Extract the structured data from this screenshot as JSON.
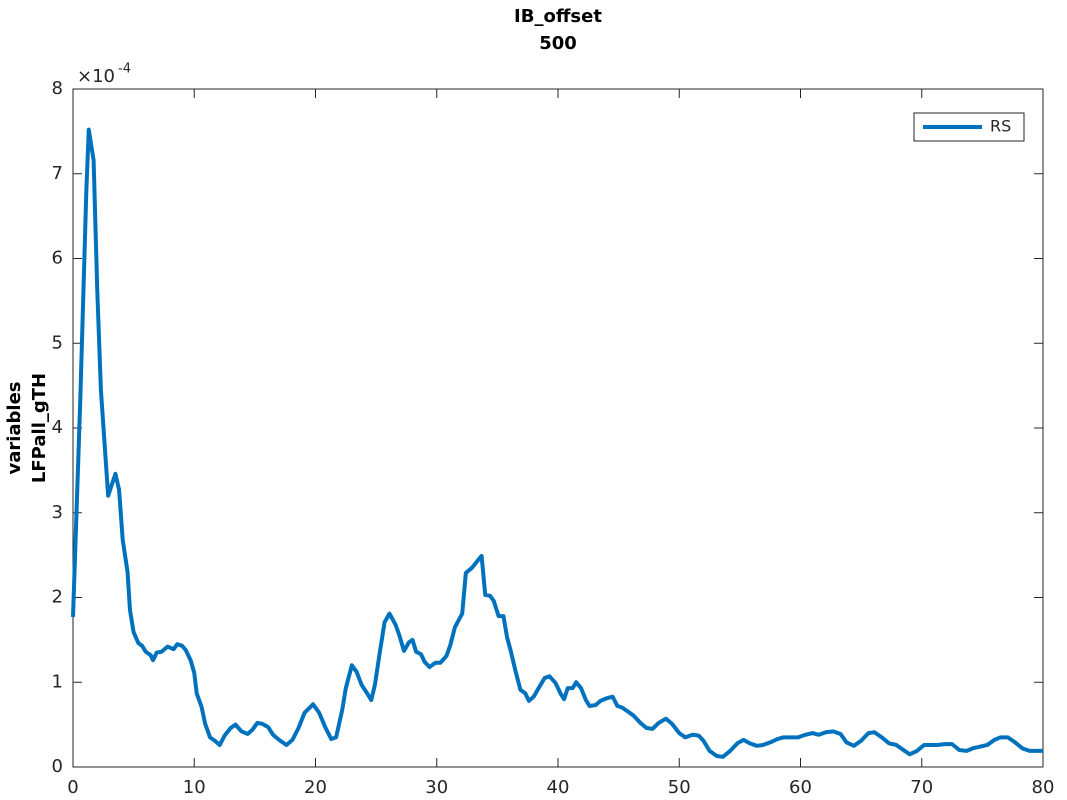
{
  "chart_data": {
    "type": "line",
    "title": [
      "IB_offset",
      "500"
    ],
    "ylabel": [
      "variables",
      "LFPall_gTH"
    ],
    "y_multiplier": "×10",
    "y_multiplier_exponent": "-4",
    "x": [
      0,
      0.6,
      1.1,
      1.3,
      1.7,
      2.0,
      2.3,
      2.9,
      3.5,
      3.8,
      4.1,
      4.5,
      4.7,
      5.0,
      5.4,
      5.7,
      6.0,
      6.4,
      6.6,
      6.9,
      7.3,
      7.8,
      8.3,
      8.6,
      9.0,
      9.3,
      9.7,
      10.0,
      10.2,
      10.6,
      10.9,
      11.3,
      11.7,
      12.1,
      12.5,
      13.0,
      13.4,
      13.9,
      14.4,
      14.8,
      15.2,
      15.6,
      16.1,
      16.5,
      17.0,
      17.6,
      18.1,
      18.6,
      19.1,
      19.8,
      20.3,
      20.8,
      21.3,
      21.7,
      22.2,
      22.5,
      23.0,
      23.4,
      23.8,
      24.3,
      24.6,
      24.9,
      25.3,
      25.7,
      26.1,
      26.6,
      26.9,
      27.3,
      27.7,
      28.0,
      28.3,
      28.7,
      29.0,
      29.4,
      29.9,
      30.3,
      30.8,
      31.1,
      31.5,
      32.1,
      32.4,
      32.9,
      33.4,
      33.7,
      34.0,
      34.4,
      34.7,
      35.1,
      35.5,
      35.8,
      36.1,
      36.5,
      36.9,
      37.3,
      37.6,
      38.0,
      38.4,
      38.9,
      39.3,
      39.8,
      40.2,
      40.5,
      40.8,
      41.2,
      41.5,
      41.9,
      42.3,
      42.6,
      43.1,
      43.5,
      44.0,
      44.5,
      44.9,
      45.3,
      45.8,
      46.2,
      46.8,
      47.3,
      47.8,
      48.3,
      48.9,
      49.4,
      50.0,
      50.5,
      51.1,
      51.6,
      52.0,
      52.5,
      53.1,
      53.6,
      54.2,
      54.8,
      55.3,
      55.8,
      56.4,
      56.9,
      57.5,
      58.1,
      58.6,
      59.2,
      59.8,
      60.4,
      61.0,
      61.5,
      62.1,
      62.7,
      63.3,
      63.8,
      64.4,
      65.0,
      65.6,
      66.1,
      66.7,
      67.3,
      67.9,
      68.5,
      69.0,
      69.6,
      70.2,
      70.8,
      71.3,
      71.9,
      72.5,
      73.1,
      73.7,
      74.2,
      74.8,
      75.4,
      76.0,
      76.5,
      77.1,
      77.7,
      78.3,
      78.9,
      79.4,
      80.0
    ],
    "series": [
      {
        "name": "RS",
        "color": "#0072bd",
        "values": [
          1.77,
          4.33,
          6.8,
          7.52,
          7.16,
          5.63,
          4.45,
          3.2,
          3.46,
          3.27,
          2.68,
          2.3,
          1.85,
          1.59,
          1.46,
          1.43,
          1.36,
          1.32,
          1.26,
          1.35,
          1.36,
          1.42,
          1.39,
          1.45,
          1.43,
          1.38,
          1.26,
          1.11,
          0.87,
          0.71,
          0.51,
          0.35,
          0.31,
          0.26,
          0.37,
          0.46,
          0.5,
          0.42,
          0.39,
          0.44,
          0.52,
          0.51,
          0.47,
          0.38,
          0.32,
          0.26,
          0.32,
          0.46,
          0.64,
          0.74,
          0.64,
          0.47,
          0.33,
          0.35,
          0.67,
          0.93,
          1.2,
          1.12,
          0.97,
          0.86,
          0.79,
          0.97,
          1.35,
          1.71,
          1.81,
          1.68,
          1.56,
          1.37,
          1.47,
          1.5,
          1.36,
          1.33,
          1.24,
          1.18,
          1.23,
          1.23,
          1.31,
          1.43,
          1.65,
          1.81,
          2.29,
          2.35,
          2.44,
          2.49,
          2.03,
          2.02,
          1.96,
          1.78,
          1.78,
          1.53,
          1.37,
          1.13,
          0.91,
          0.87,
          0.78,
          0.83,
          0.93,
          1.05,
          1.07,
          0.99,
          0.87,
          0.8,
          0.93,
          0.93,
          1.0,
          0.93,
          0.79,
          0.72,
          0.73,
          0.78,
          0.81,
          0.83,
          0.72,
          0.7,
          0.65,
          0.61,
          0.52,
          0.46,
          0.45,
          0.52,
          0.57,
          0.51,
          0.4,
          0.35,
          0.38,
          0.37,
          0.31,
          0.19,
          0.13,
          0.12,
          0.19,
          0.28,
          0.32,
          0.28,
          0.25,
          0.26,
          0.29,
          0.33,
          0.35,
          0.35,
          0.35,
          0.38,
          0.4,
          0.38,
          0.41,
          0.42,
          0.39,
          0.29,
          0.25,
          0.31,
          0.4,
          0.41,
          0.35,
          0.28,
          0.26,
          0.2,
          0.15,
          0.19,
          0.26,
          0.26,
          0.26,
          0.27,
          0.27,
          0.2,
          0.19,
          0.22,
          0.24,
          0.26,
          0.32,
          0.35,
          0.35,
          0.29,
          0.22,
          0.19,
          0.19,
          0.19
        ]
      }
    ],
    "xlim": [
      0,
      80
    ],
    "xticks": [
      0,
      10,
      20,
      30,
      40,
      50,
      60,
      70,
      80
    ],
    "ylim": [
      0,
      8
    ],
    "yticks": [
      0,
      1,
      2,
      3,
      4,
      5,
      6,
      7,
      8
    ],
    "grid": false,
    "legend_position": "northeast"
  }
}
